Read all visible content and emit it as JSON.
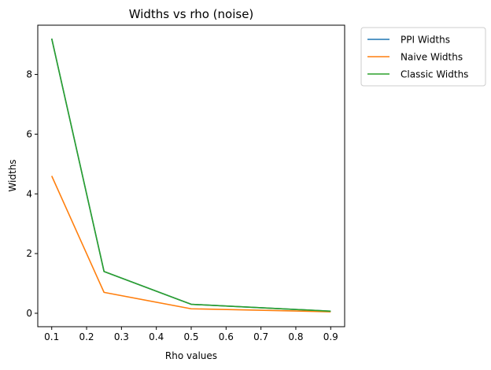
{
  "chart_data": {
    "type": "line",
    "title": "Widths vs rho (noise)",
    "xlabel": "Rho values",
    "ylabel": "Widths",
    "xlim": [
      0.06,
      0.94
    ],
    "ylim": [
      -0.45,
      9.65
    ],
    "xticks": [
      0.1,
      0.2,
      0.3,
      0.4,
      0.5,
      0.6,
      0.7,
      0.8,
      0.9
    ],
    "xtick_labels": [
      "0.1",
      "0.2",
      "0.3",
      "0.4",
      "0.5",
      "0.6",
      "0.7",
      "0.8",
      "0.9"
    ],
    "yticks": [
      0,
      2,
      4,
      6,
      8
    ],
    "ytick_labels": [
      "0",
      "2",
      "4",
      "6",
      "8"
    ],
    "x": [
      0.1,
      0.25,
      0.5,
      0.9
    ],
    "series": [
      {
        "name": "PPI Widths",
        "color": "#1f77b4",
        "values": [
          9.2,
          1.4,
          0.3,
          0.07
        ]
      },
      {
        "name": "Naive Widths",
        "color": "#ff7f0e",
        "values": [
          4.6,
          0.7,
          0.15,
          0.05
        ]
      },
      {
        "name": "Classic Widths",
        "color": "#2ca02c",
        "values": [
          9.2,
          1.4,
          0.3,
          0.07
        ]
      }
    ],
    "grid": false,
    "legend_placement": "outside-upper-right"
  }
}
